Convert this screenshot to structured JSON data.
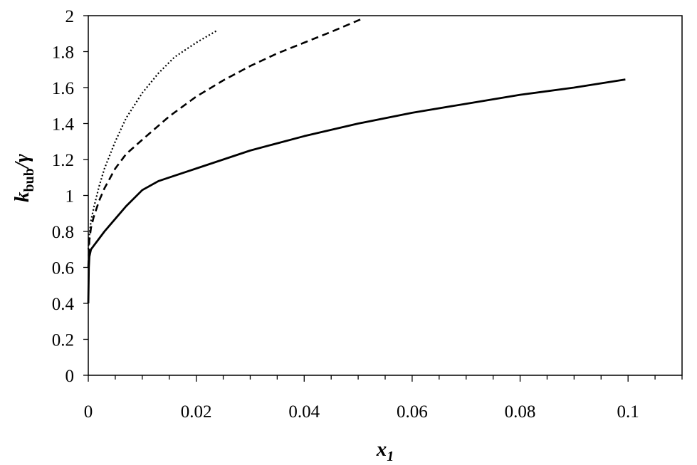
{
  "chart_data": {
    "type": "line",
    "title": "",
    "xlabel": {
      "main": "x",
      "sub": "1"
    },
    "ylabel": {
      "main": "k",
      "sub": "bub",
      "rest": "/γ"
    },
    "xlim": [
      0,
      0.11
    ],
    "ylim": [
      0,
      2
    ],
    "xticks": [
      0,
      0.02,
      0.04,
      0.06,
      0.08,
      0.1
    ],
    "xtick_labels": [
      "0",
      "0.02",
      "0.04",
      "0.06",
      "0.08",
      "0.1"
    ],
    "x_minor_step": 0.005,
    "yticks": [
      0,
      0.2,
      0.4,
      0.6,
      0.8,
      1,
      1.2,
      1.4,
      1.6,
      1.8,
      2
    ],
    "ytick_labels": [
      "0",
      "0.2",
      "0.4",
      "0.6",
      "0.8",
      "1",
      "1.2",
      "1.4",
      "1.6",
      "1.8",
      "2"
    ],
    "grid": false,
    "legend": "none",
    "series": [
      {
        "style": "solid",
        "color": "#000000",
        "x": [
          0,
          0.0001,
          0.0002,
          0.0005,
          0.001,
          0.002,
          0.003,
          0.005,
          0.007,
          0.01,
          0.013,
          0.016,
          0.02,
          0.025,
          0.03,
          0.04,
          0.05,
          0.06,
          0.07,
          0.08,
          0.09,
          0.0995
        ],
        "y": [
          0.4,
          0.6,
          0.66,
          0.7,
          0.72,
          0.76,
          0.8,
          0.87,
          0.94,
          1.03,
          1.08,
          1.11,
          1.15,
          1.2,
          1.25,
          1.33,
          1.4,
          1.46,
          1.51,
          1.56,
          1.6,
          1.645
        ]
      },
      {
        "style": "dashed",
        "color": "#000000",
        "x": [
          0,
          0.0002,
          0.0005,
          0.001,
          0.002,
          0.003,
          0.005,
          0.007,
          0.01,
          0.015,
          0.02,
          0.025,
          0.03,
          0.035,
          0.04,
          0.045,
          0.0505
        ],
        "y": [
          0.6,
          0.75,
          0.82,
          0.88,
          0.97,
          1.04,
          1.15,
          1.23,
          1.31,
          1.44,
          1.55,
          1.64,
          1.72,
          1.79,
          1.85,
          1.91,
          1.98
        ]
      },
      {
        "style": "dotted",
        "color": "#000000",
        "x": [
          0,
          0.0002,
          0.0005,
          0.001,
          0.002,
          0.003,
          0.005,
          0.007,
          0.01,
          0.013,
          0.016,
          0.02,
          0.024
        ],
        "y": [
          0.7,
          0.78,
          0.86,
          0.93,
          1.05,
          1.15,
          1.3,
          1.43,
          1.57,
          1.68,
          1.77,
          1.85,
          1.92
        ]
      }
    ]
  }
}
